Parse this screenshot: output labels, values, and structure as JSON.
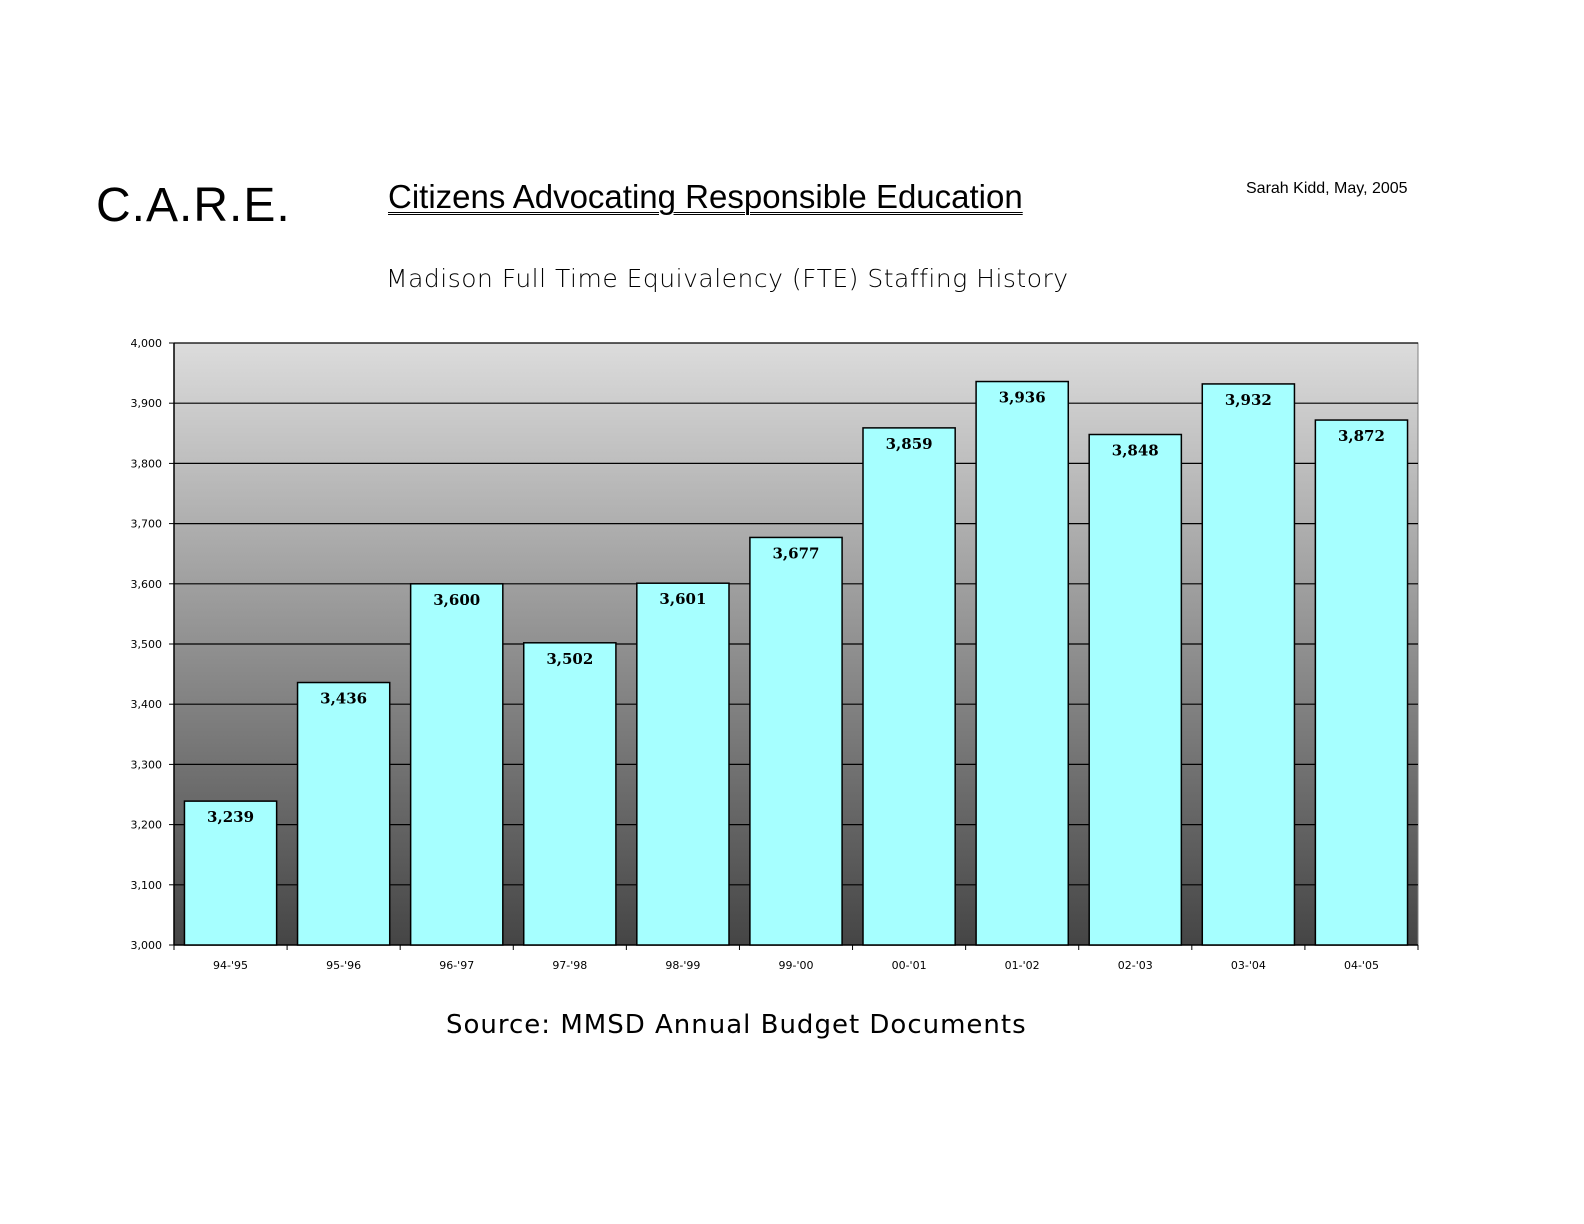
{
  "header": {
    "org_acronym": "C.A.R.E.",
    "org_name": "Citizens Advocating Responsible Education",
    "author_date": "Sarah Kidd, May, 2005"
  },
  "footer": {
    "source": "Source:  MMSD Annual Budget Documents"
  },
  "chart_data": {
    "type": "bar",
    "title": "Madison Full Time Equivalency (FTE) Staffing History",
    "xlabel": "",
    "ylabel": "",
    "categories": [
      "94-'95",
      "95-'96",
      "96-'97",
      "97-'98",
      "98-'99",
      "99-'00",
      "00-'01",
      "01-'02",
      "02-'03",
      "03-'04",
      "04-'05"
    ],
    "values": [
      3239,
      3436,
      3600,
      3502,
      3601,
      3677,
      3859,
      3936,
      3848,
      3932,
      3872
    ],
    "data_labels": [
      "3,239",
      "3,436",
      "3,600",
      "3,502",
      "3,601",
      "3,677",
      "3,859",
      "3,936",
      "3,848",
      "3,932",
      "3,872"
    ],
    "ylim": [
      3000,
      4000
    ],
    "yticks": [
      3000,
      3100,
      3200,
      3300,
      3400,
      3500,
      3600,
      3700,
      3800,
      3900,
      4000
    ],
    "ytick_labels": [
      "3,000",
      "3,100",
      "3,200",
      "3,300",
      "3,400",
      "3,500",
      "3,600",
      "3,700",
      "3,800",
      "3,900",
      "4,000"
    ],
    "grid": true,
    "legend": "none",
    "colors": {
      "bar_fill": "#a6ffff",
      "bar_stroke": "#000000",
      "plot_bg_top": "#dcdcdc",
      "plot_bg_bottom": "#454545",
      "grid": "#000000"
    }
  }
}
